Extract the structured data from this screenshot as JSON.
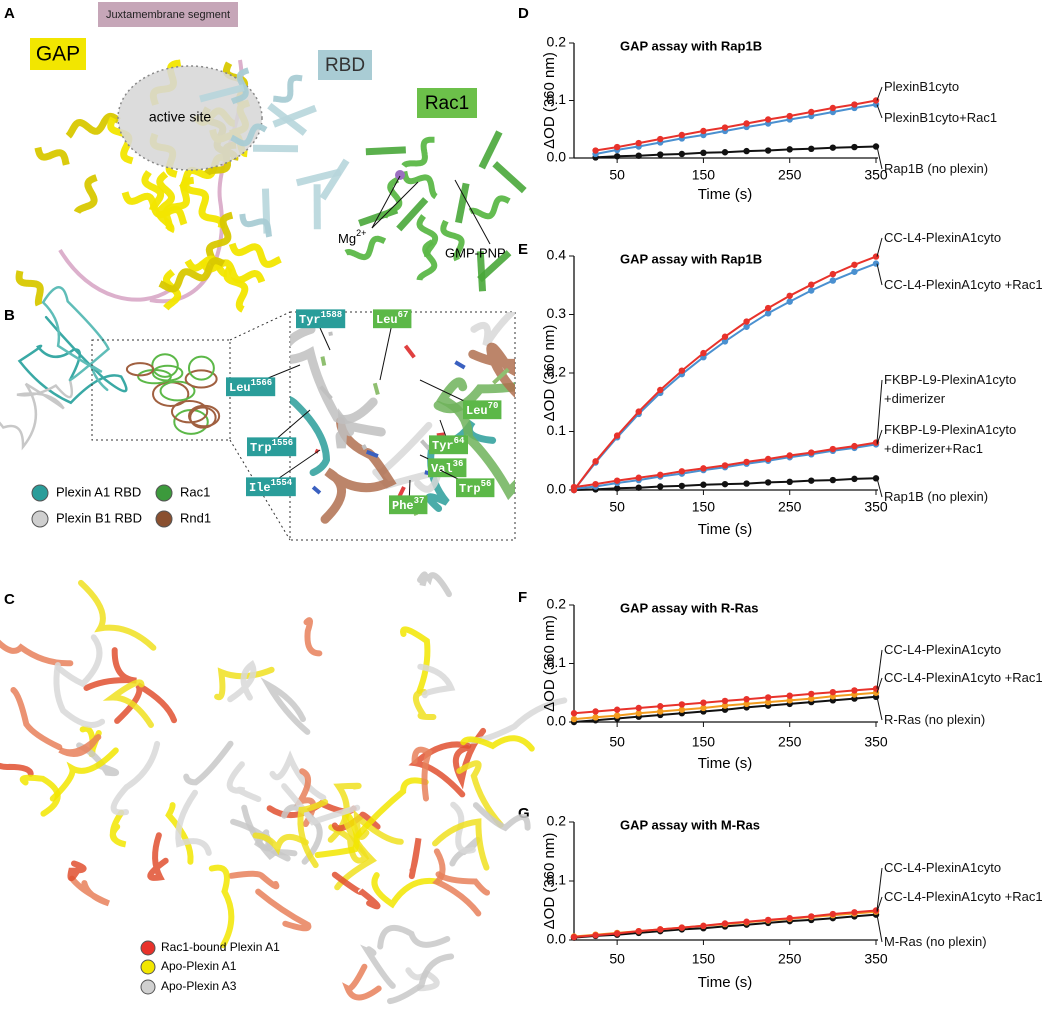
{
  "panel_letters": [
    "A",
    "B",
    "C",
    "D",
    "E",
    "F",
    "G"
  ],
  "panel_a": {
    "juxtamembrane": "Juxtamembrane segment",
    "gap": "GAP",
    "rbd": "RBD",
    "rac1": "Rac1",
    "active_site": "active site",
    "mg": {
      "base": "Mg",
      "sup": "2+"
    },
    "gmppnp": "GMP-PNP"
  },
  "panel_b": {
    "residues": [
      {
        "name": "Tyr",
        "num": "1588"
      },
      {
        "name": "Leu",
        "num": "1566"
      },
      {
        "name": "Trp",
        "num": "1556"
      },
      {
        "name": "Ile",
        "num": "1554"
      },
      {
        "name": "Leu",
        "num": "67"
      },
      {
        "name": "Leu",
        "num": "70"
      },
      {
        "name": "Tyr",
        "num": "64"
      },
      {
        "name": "Val",
        "num": "36"
      },
      {
        "name": "Phe",
        "num": "37"
      },
      {
        "name": "Trp",
        "num": "56"
      }
    ],
    "legend": [
      "Plexin A1 RBD",
      "Plexin B1 RBD",
      "Rac1",
      "Rnd1"
    ]
  },
  "panel_c": {
    "legend": [
      "Rac1-bound Plexin A1",
      "Apo-Plexin A1",
      "Apo-Plexin A3"
    ]
  },
  "chart_data": [
    {
      "type": "line",
      "title": "GAP assay with Rap1B",
      "ylabel": "ΔOD (360 nm)",
      "xlabel": "Time (s)",
      "xlim": [
        0,
        350
      ],
      "xticks": [
        50,
        150,
        250,
        350
      ],
      "ylim": [
        0,
        0.2
      ],
      "yticks": [
        {
          "value": 0,
          "label": "0.0"
        },
        {
          "value": 0.1,
          "label": "0.1"
        },
        {
          "value": 0.2,
          "label": "0.2"
        }
      ],
      "x": [
        25,
        50,
        75,
        100,
        125,
        150,
        175,
        200,
        225,
        250,
        275,
        300,
        325,
        350
      ],
      "series": [
        {
          "name": "PlexinB1cyto",
          "color": "#e8322b",
          "values": [
            0.013,
            0.019,
            0.026,
            0.033,
            0.04,
            0.047,
            0.053,
            0.06,
            0.067,
            0.073,
            0.08,
            0.087,
            0.093,
            0.1
          ]
        },
        {
          "name": "PlexinB1cyto+Rac1",
          "color": "#4a90d0",
          "values": [
            0.007,
            0.014,
            0.02,
            0.027,
            0.034,
            0.04,
            0.047,
            0.054,
            0.06,
            0.067,
            0.073,
            0.08,
            0.087,
            0.093
          ]
        },
        {
          "name": "Rap1B (no plexin)",
          "color": "#111111",
          "values": [
            0.001,
            0.003,
            0.004,
            0.006,
            0.007,
            0.009,
            0.01,
            0.012,
            0.013,
            0.015,
            0.016,
            0.018,
            0.019,
            0.02
          ]
        }
      ]
    },
    {
      "type": "line",
      "title": "GAP assay with Rap1B",
      "ylabel": "ΔOD (360 nm)",
      "xlabel": "Time (s)",
      "xlim": [
        0,
        350
      ],
      "xticks": [
        50,
        150,
        250,
        350
      ],
      "ylim": [
        0,
        0.4
      ],
      "yticks": [
        {
          "value": 0,
          "label": "0.0"
        },
        {
          "value": 0.1,
          "label": "0.1"
        },
        {
          "value": 0.2,
          "label": "0.2"
        },
        {
          "value": 0.3,
          "label": "0.3"
        },
        {
          "value": 0.4,
          "label": "0.4"
        }
      ],
      "x": [
        0,
        25,
        50,
        75,
        100,
        125,
        150,
        175,
        200,
        225,
        250,
        275,
        300,
        325,
        350
      ],
      "series": [
        {
          "name": "CC-L4-PlexinA1cyto",
          "color": "#e8322b",
          "values": [
            0,
            0.049,
            0.093,
            0.134,
            0.171,
            0.204,
            0.234,
            0.262,
            0.288,
            0.311,
            0.332,
            0.351,
            0.369,
            0.385,
            0.399
          ]
        },
        {
          "name": "CC-L4-PlexinA1cyto +Rac1",
          "color": "#4a90d0",
          "values": [
            0,
            0.047,
            0.09,
            0.13,
            0.166,
            0.198,
            0.227,
            0.254,
            0.279,
            0.302,
            0.322,
            0.341,
            0.358,
            0.373,
            0.387
          ]
        },
        {
          "name": "FKBP-L9-PlexinA1cyto +dimerizer",
          "color": "#e8322b",
          "values": [
            0.005,
            0.01,
            0.016,
            0.021,
            0.026,
            0.032,
            0.037,
            0.042,
            0.048,
            0.053,
            0.059,
            0.064,
            0.07,
            0.075,
            0.081
          ]
        },
        {
          "name": "FKBP-L9-PlexinA1cyto +dimerizer+Rac1",
          "color": "#4a90d0",
          "values": [
            0.002,
            0.006,
            0.012,
            0.017,
            0.023,
            0.028,
            0.034,
            0.039,
            0.045,
            0.05,
            0.056,
            0.061,
            0.067,
            0.072,
            0.078
          ]
        },
        {
          "name": "Rap1B (no plexin)",
          "color": "#111111",
          "values": [
            0,
            0.001,
            0.003,
            0.004,
            0.006,
            0.007,
            0.009,
            0.01,
            0.011,
            0.013,
            0.014,
            0.016,
            0.017,
            0.019,
            0.02
          ]
        }
      ]
    },
    {
      "type": "line",
      "title": "GAP assay with R-Ras",
      "ylabel": "ΔOD (360 nm)",
      "xlabel": "Time (s)",
      "xlim": [
        0,
        350
      ],
      "xticks": [
        50,
        150,
        250,
        350
      ],
      "ylim": [
        0,
        0.2
      ],
      "yticks": [
        {
          "value": 0,
          "label": "0.0"
        },
        {
          "value": 0.1,
          "label": "0.1"
        },
        {
          "value": 0.2,
          "label": "0.2"
        }
      ],
      "x": [
        0,
        25,
        50,
        75,
        100,
        125,
        150,
        175,
        200,
        225,
        250,
        275,
        300,
        325,
        350
      ],
      "series": [
        {
          "name": "CC-L4-PlexinA1cyto",
          "color": "#e8322b",
          "values": [
            0.015,
            0.018,
            0.021,
            0.024,
            0.027,
            0.03,
            0.033,
            0.036,
            0.039,
            0.042,
            0.045,
            0.048,
            0.051,
            0.054,
            0.057
          ]
        },
        {
          "name": "CC-L4-PlexinA1cyto +Rac1",
          "color": "#f39c1f",
          "values": [
            0.005,
            0.008,
            0.011,
            0.015,
            0.018,
            0.021,
            0.024,
            0.028,
            0.031,
            0.034,
            0.037,
            0.04,
            0.044,
            0.047,
            0.05
          ]
        },
        {
          "name": "R-Ras (no plexin)",
          "color": "#111111",
          "values": [
            0,
            0.003,
            0.006,
            0.009,
            0.012,
            0.015,
            0.018,
            0.021,
            0.025,
            0.028,
            0.031,
            0.034,
            0.037,
            0.04,
            0.043
          ]
        }
      ]
    },
    {
      "type": "line",
      "title": "GAP assay with M-Ras",
      "ylabel": "ΔOD (360 nm)",
      "xlabel": "Time (s)",
      "xlim": [
        0,
        350
      ],
      "xticks": [
        50,
        150,
        250,
        350
      ],
      "ylim": [
        0,
        0.2
      ],
      "yticks": [
        {
          "value": 0,
          "label": "0.0"
        },
        {
          "value": 0.1,
          "label": "0.1"
        },
        {
          "value": 0.2,
          "label": "0.2"
        }
      ],
      "x": [
        0,
        25,
        50,
        75,
        100,
        125,
        150,
        175,
        200,
        225,
        250,
        275,
        300,
        325,
        350
      ],
      "series": [
        {
          "name": "CC-L4-PlexinA1cyto",
          "color": "#e8322b",
          "values": [
            0.005,
            0.008,
            0.011,
            0.015,
            0.018,
            0.021,
            0.024,
            0.028,
            0.031,
            0.034,
            0.037,
            0.04,
            0.044,
            0.047,
            0.05
          ]
        },
        {
          "name": "CC-L4-PlexinA1cyto +Rac1",
          "color": "#f39c1f",
          "values": [
            0.006,
            0.009,
            0.012,
            0.015,
            0.018,
            0.021,
            0.024,
            0.027,
            0.03,
            0.033,
            0.036,
            0.039,
            0.042,
            0.045,
            0.048
          ]
        },
        {
          "name": "M-Ras (no plexin)",
          "color": "#111111",
          "values": [
            0.004,
            0.007,
            0.009,
            0.012,
            0.015,
            0.018,
            0.02,
            0.023,
            0.026,
            0.029,
            0.032,
            0.034,
            0.037,
            0.04,
            0.043
          ]
        }
      ]
    }
  ]
}
